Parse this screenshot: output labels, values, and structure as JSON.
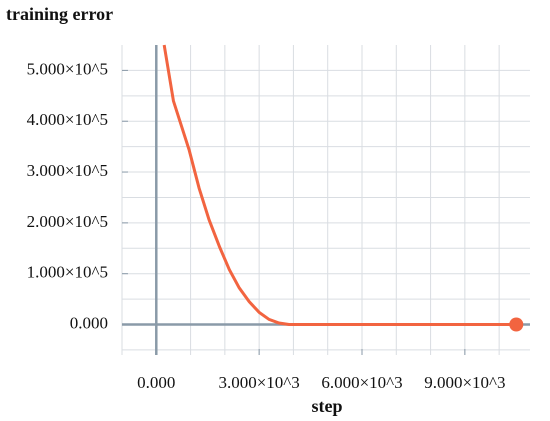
{
  "chart_data": {
    "type": "line",
    "title": "training error",
    "x_label": "step",
    "x": [
      230,
      500,
      960,
      1250,
      1540,
      1850,
      2130,
      2420,
      2710,
      3000,
      3290,
      3580,
      3870,
      4500,
      6000,
      8000,
      10500
    ],
    "values": [
      550000,
      440000,
      343000,
      268000,
      206000,
      152000,
      108000,
      72000,
      45000,
      24000,
      10000,
      3000,
      0,
      0,
      0,
      0,
      0
    ],
    "color": "#f26440",
    "xlim": [
      -1000,
      10900
    ],
    "ylim": [
      -60000,
      550000
    ],
    "xticks": [
      {
        "value": 0,
        "label": "0.000"
      },
      {
        "value": 3000,
        "label": "3.000×10^3"
      },
      {
        "value": 6000,
        "label": "6.000×10^3"
      },
      {
        "value": 9000,
        "label": "9.000×10^3"
      }
    ],
    "yticks": [
      {
        "value": 0,
        "label": "0.000"
      },
      {
        "value": 100000,
        "label": "1.000×10^5"
      },
      {
        "value": 200000,
        "label": "2.000×10^5"
      },
      {
        "value": 300000,
        "label": "3.000×10^5"
      },
      {
        "value": 400000,
        "label": "4.000×10^5"
      },
      {
        "value": 500000,
        "label": "5.000×10^5"
      }
    ],
    "grid_x": [
      -1000,
      0,
      1000,
      2000,
      3000,
      4000,
      5000,
      6000,
      7000,
      8000,
      9000,
      10000
    ],
    "grid_y": [
      -50000,
      0,
      50000,
      100000,
      150000,
      200000,
      250000,
      300000,
      350000,
      400000,
      450000,
      500000
    ],
    "grid": true
  }
}
